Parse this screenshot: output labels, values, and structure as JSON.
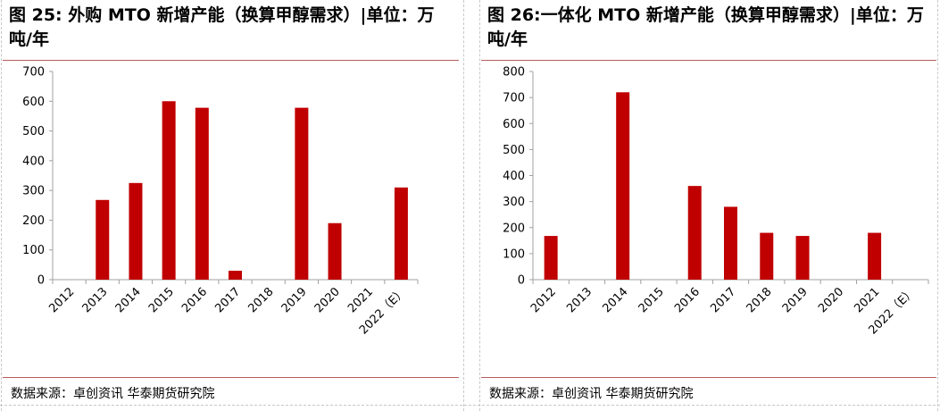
{
  "panels": [
    {
      "title": "图 25: 外购 MTO 新增产能（换算甲醇需求）|单位：万吨/年",
      "source": "数据来源：卓创资讯 华泰期货研究院"
    },
    {
      "title": "图 26:一体化 MTO 新增产能（换算甲醇需求）|单位：万吨/年",
      "source": "数据来源：卓创资讯 华泰期货研究院"
    }
  ],
  "colors": {
    "bar": "#c00000",
    "rule": "#b85c5c",
    "axis": "#a0a0a0"
  },
  "chart_data": [
    {
      "type": "bar",
      "title": "图 25: 外购 MTO 新增产能（换算甲醇需求）|单位：万吨/年",
      "categories": [
        "2012",
        "2013",
        "2014",
        "2015",
        "2016",
        "2017",
        "2018",
        "2019",
        "2020",
        "2021",
        "2022（E）"
      ],
      "values": [
        0,
        268,
        325,
        600,
        578,
        30,
        0,
        578,
        190,
        0,
        310
      ],
      "ylim": [
        0,
        700
      ],
      "yticks": [
        "0",
        "100",
        "200",
        "300",
        "400",
        "500",
        "600",
        "700"
      ],
      "xlabel": "",
      "ylabel": "",
      "grid": false,
      "legend": "none"
    },
    {
      "type": "bar",
      "title": "图 26:一体化 MTO 新增产能（换算甲醇需求）|单位：万吨/年",
      "categories": [
        "2012",
        "2013",
        "2014",
        "2015",
        "2016",
        "2017",
        "2018",
        "2019",
        "2020",
        "2021",
        "2022（E）"
      ],
      "values": [
        168,
        0,
        720,
        0,
        360,
        280,
        180,
        168,
        0,
        180,
        0
      ],
      "ylim": [
        0,
        800
      ],
      "yticks": [
        "0",
        "100",
        "200",
        "300",
        "400",
        "500",
        "600",
        "700",
        "800"
      ],
      "xlabel": "",
      "ylabel": "",
      "grid": false,
      "legend": "none"
    }
  ]
}
